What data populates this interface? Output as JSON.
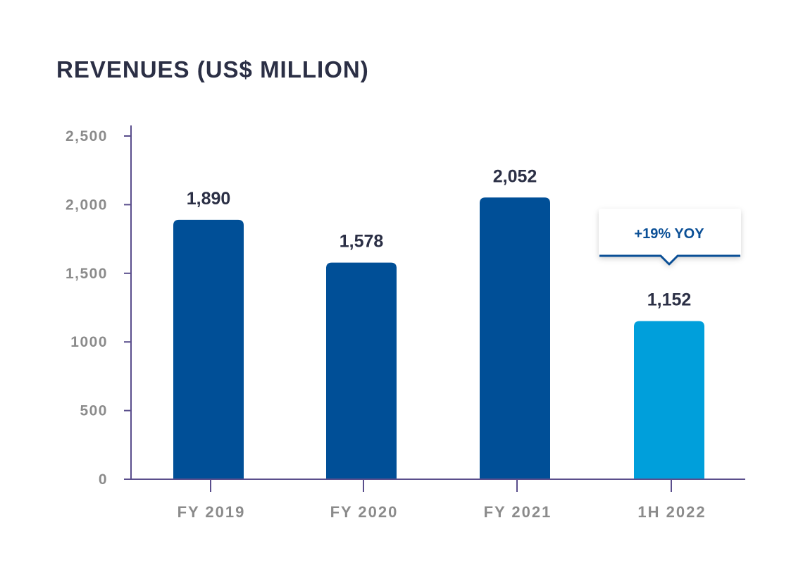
{
  "chart_data": {
    "type": "bar",
    "title": "REVENUES (US$ MILLION)",
    "xlabel": "",
    "ylabel": "",
    "categories": [
      "FY 2019",
      "FY 2020",
      "FY 2021",
      "1H 2022"
    ],
    "values": [
      1890,
      1578,
      2052,
      1152
    ],
    "value_labels": [
      "1,890",
      "1,578",
      "2,052",
      "1,152"
    ],
    "ylim": [
      0,
      2500
    ],
    "yticks": [
      0,
      500,
      1000,
      1500,
      2000,
      2500
    ],
    "ytick_labels": [
      "0",
      "500",
      "1000",
      "1,500",
      "2,000",
      "2,500"
    ],
    "bar_colors": [
      "#004f97",
      "#004f97",
      "#004f97",
      "#009fdb"
    ],
    "grid": false,
    "annotation": {
      "text": "+19% YOY",
      "category": "1H 2022",
      "color": "#0a4f96"
    },
    "axis_color": "#5a4e8c"
  }
}
